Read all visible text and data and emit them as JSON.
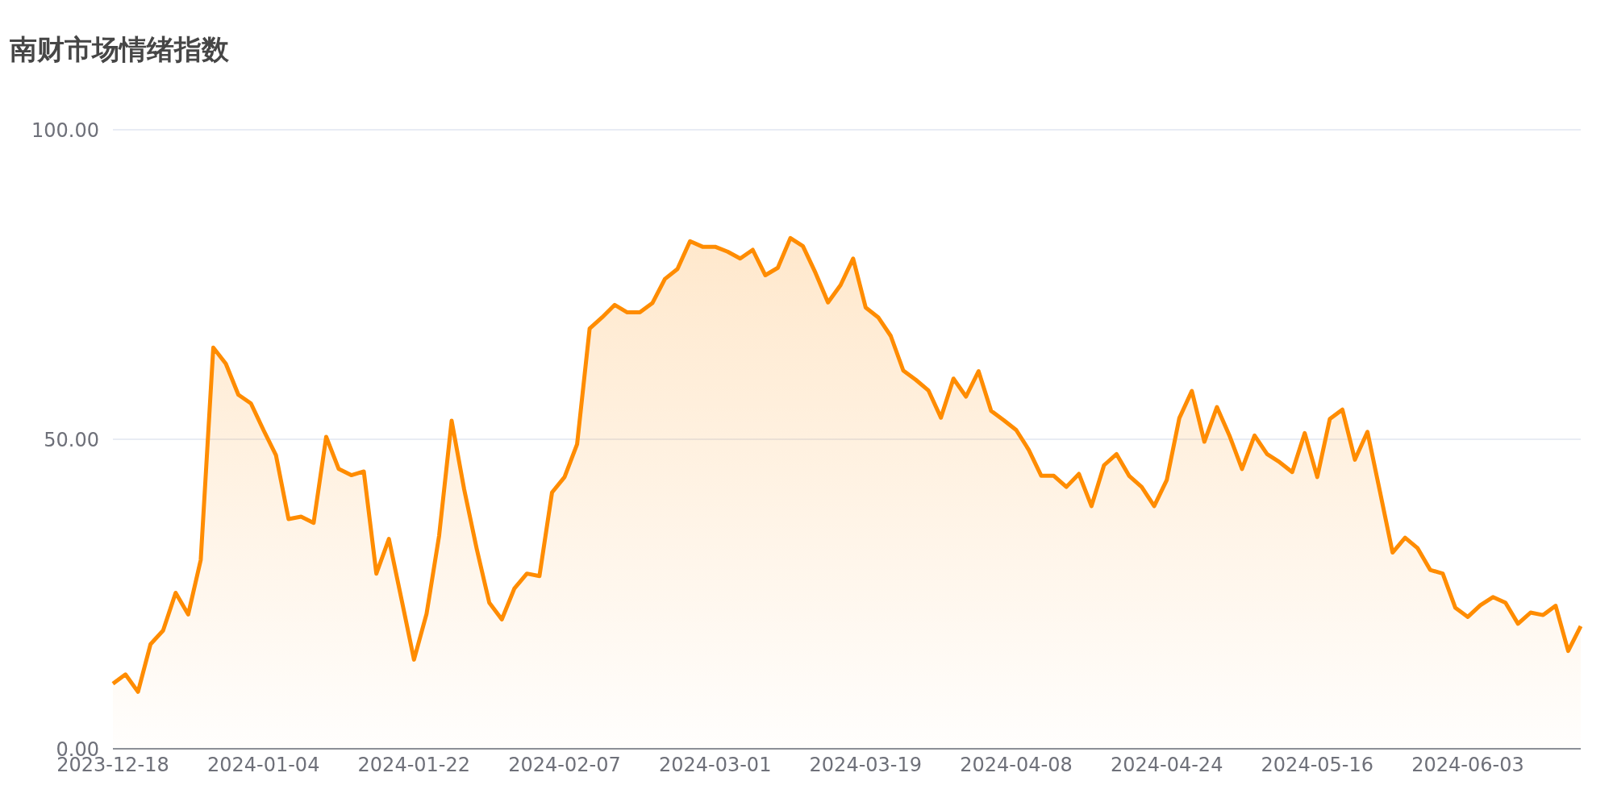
{
  "chart_data": {
    "type": "area",
    "title": "南财市场情绪指数",
    "categories": [
      "2023-12-18",
      null,
      null,
      null,
      null,
      null,
      null,
      null,
      null,
      null,
      null,
      null,
      "2024-01-04",
      null,
      null,
      null,
      null,
      null,
      null,
      null,
      null,
      null,
      null,
      null,
      "2024-01-22",
      null,
      null,
      null,
      null,
      null,
      null,
      null,
      null,
      null,
      null,
      null,
      "2024-02-07",
      null,
      null,
      null,
      null,
      null,
      null,
      null,
      null,
      null,
      null,
      null,
      "2024-03-01",
      null,
      null,
      null,
      null,
      null,
      null,
      null,
      null,
      null,
      null,
      null,
      "2024-03-19",
      null,
      null,
      null,
      null,
      null,
      null,
      null,
      null,
      null,
      null,
      null,
      "2024-04-08",
      null,
      null,
      null,
      null,
      null,
      null,
      null,
      null,
      null,
      null,
      null,
      "2024-04-24",
      null,
      null,
      null,
      null,
      null,
      null,
      null,
      null,
      null,
      null,
      null,
      "2024-05-16",
      null,
      null,
      null,
      null,
      null,
      null,
      null,
      null,
      null,
      null,
      null,
      "2024-06-03",
      null,
      null,
      null,
      null,
      null,
      null,
      null,
      null,
      null
    ],
    "values": [
      10.5,
      12.0,
      9.2,
      16.9,
      19.1,
      25.2,
      21.7,
      30.5,
      64.8,
      62.2,
      57.2,
      55.8,
      51.5,
      47.4,
      37.1,
      37.5,
      36.5,
      50.4,
      45.2,
      44.2,
      44.8,
      28.3,
      33.9,
      24.2,
      14.4,
      21.8,
      34.4,
      53.0,
      41.9,
      32.3,
      23.6,
      20.9,
      25.9,
      28.3,
      27.9,
      41.4,
      43.9,
      49.2,
      67.9,
      69.7,
      71.7,
      70.5,
      70.5,
      72.0,
      75.9,
      77.5,
      82.0,
      81.1,
      81.1,
      80.3,
      79.2,
      80.6,
      76.5,
      77.7,
      82.5,
      81.2,
      76.9,
      72.1,
      74.9,
      79.2,
      71.3,
      69.7,
      66.7,
      61.1,
      59.6,
      57.9,
      53.5,
      59.8,
      56.9,
      61.0,
      54.6,
      53.1,
      51.5,
      48.3,
      44.1,
      44.1,
      42.3,
      44.4,
      39.2,
      45.8,
      47.6,
      44.1,
      42.3,
      39.2,
      43.4,
      53.4,
      57.8,
      49.6,
      55.2,
      50.6,
      45.2,
      50.6,
      47.6,
      46.3,
      44.7,
      51.0,
      43.9,
      53.3,
      54.8,
      46.7,
      51.2,
      41.5,
      31.7,
      34.1,
      32.4,
      28.9,
      28.3,
      22.8,
      21.3,
      23.2,
      24.5,
      23.6,
      20.2,
      22.0,
      21.6,
      23.1,
      15.8,
      19.8
    ],
    "color": "#ff8c00",
    "ylim": [
      0,
      100
    ],
    "yticks": [
      {
        "value": 0,
        "label": "0.00"
      },
      {
        "value": 50,
        "label": "50.00"
      },
      {
        "value": 100,
        "label": "100.00"
      }
    ],
    "grid": "y"
  }
}
